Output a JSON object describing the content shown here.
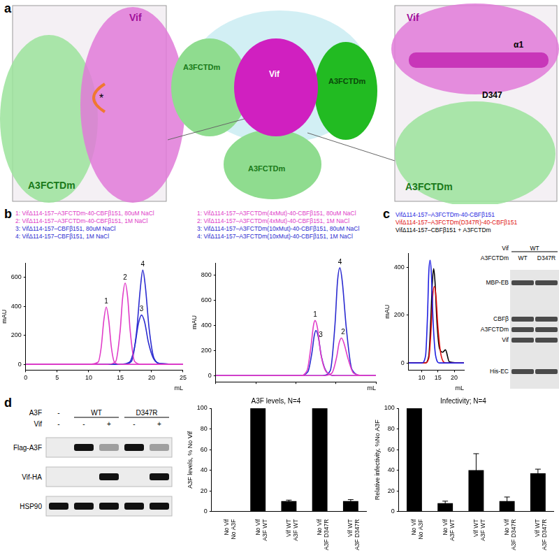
{
  "panel_letters": [
    "a",
    "b",
    "c",
    "d"
  ],
  "panel_a": {
    "left_inset": [
      "A3FCTDm",
      "Vif",
      "*"
    ],
    "center": [
      "A3FCTDm",
      "Vif",
      "A3FCTDm",
      "A3FCTDm"
    ],
    "right_inset": [
      "Vif",
      "α1",
      "D347",
      "A3FCTDm"
    ]
  },
  "chart_data": [
    {
      "type": "line",
      "x_label": "mL",
      "y_label": "mAU",
      "xlim": [
        0,
        25
      ],
      "xticks": [
        0,
        5,
        10,
        15,
        20,
        25
      ],
      "ylim": [
        -40,
        700
      ],
      "yticks": [
        0,
        200,
        400,
        600
      ],
      "grid": false,
      "series": [
        {
          "name": "1: VifΔ114-157–A3FCTDm-40-CBFβ151, 80uM NaCl",
          "color": "#e03cc8",
          "x": [
            0,
            10,
            11.5,
            12,
            12.4,
            12.8,
            13.2,
            13.6,
            14.1,
            15,
            20,
            25
          ],
          "values": [
            0,
            0,
            15,
            120,
            300,
            395,
            300,
            120,
            15,
            0,
            0,
            0
          ]
        },
        {
          "name": "2: VifΔ114-157–A3FCTDm-40-CBFβ151, 1M NaCl",
          "color": "#e03cc8",
          "x": [
            0,
            13,
            14.3,
            15,
            15.4,
            15.8,
            16.2,
            16.6,
            17.3,
            18.5,
            25
          ],
          "values": [
            0,
            0,
            20,
            230,
            460,
            560,
            460,
            230,
            20,
            0,
            0
          ]
        },
        {
          "name": "3: VifΔ114-157–CBFβ151, 80uM NaCl",
          "color": "#2b2bd0",
          "x": [
            0,
            15,
            16.5,
            17.3,
            17.9,
            18.4,
            18.9,
            19.5,
            20.3,
            21.5,
            25
          ],
          "values": [
            0,
            0,
            15,
            120,
            280,
            340,
            290,
            150,
            40,
            5,
            0
          ]
        },
        {
          "name": "4: VifΔ114-157–CBFβ151, 1M NaCl",
          "color": "#2b2bd0",
          "x": [
            0,
            15.5,
            16.8,
            17.6,
            18.2,
            18.6,
            19,
            19.6,
            20.4,
            21.5,
            25
          ],
          "values": [
            0,
            0,
            20,
            220,
            520,
            650,
            540,
            250,
            40,
            5,
            0
          ]
        }
      ],
      "annotations": [
        {
          "text": "1",
          "x": 12.8,
          "y": 395
        },
        {
          "text": "2",
          "x": 15.8,
          "y": 560
        },
        {
          "text": "3",
          "x": 18.4,
          "y": 340
        },
        {
          "text": "4",
          "x": 18.6,
          "y": 650
        }
      ]
    },
    {
      "type": "line",
      "x_label": "mL",
      "y_label": "mAU",
      "xlim": [
        0,
        20
      ],
      "xticks": [
        0,
        5,
        10,
        15,
        20
      ],
      "ylim": [
        -50,
        900
      ],
      "yticks": [
        0,
        200,
        400,
        600,
        800
      ],
      "grid": false,
      "tick_labels": "y",
      "series": [
        {
          "name": "1: VifΔ114-157–A3FCTDm(4xMut)-40-CBFβ151, 80uM NaCl",
          "color": "#e03cc8",
          "x": [
            0,
            10.5,
            11.4,
            11.9,
            12.2,
            12.4,
            12.7,
            13.1,
            13.8,
            15,
            20
          ],
          "values": [
            0,
            0,
            40,
            240,
            400,
            440,
            380,
            180,
            30,
            0,
            0
          ]
        },
        {
          "name": "2: VifΔ114-157–A3FCTDm(4xMut)-40-CBFβ151, 1M NaCl",
          "color": "#e03cc8",
          "x": [
            0,
            13.5,
            14.5,
            15.1,
            15.4,
            15.7,
            16,
            16.5,
            17.2,
            18.5,
            20
          ],
          "values": [
            0,
            0,
            20,
            150,
            260,
            300,
            260,
            140,
            20,
            0,
            0
          ]
        },
        {
          "name": "3: VifΔ114-157–A3FCTDm(10xMut)-40-CBFβ151, 80uM NaCl",
          "color": "#2b2bd0",
          "x": [
            0,
            10.5,
            11.5,
            12,
            12.3,
            12.5,
            12.8,
            13.2,
            13.9,
            15,
            20
          ],
          "values": [
            0,
            0,
            30,
            180,
            320,
            360,
            310,
            150,
            25,
            0,
            0
          ]
        },
        {
          "name": "4: VifΔ114-157–A3FCTDm(10xMut)-40-CBFβ151, 1M NaCl",
          "color": "#2b2bd0",
          "x": [
            0,
            13.3,
            14.3,
            14.9,
            15.2,
            15.5,
            15.8,
            16.3,
            17,
            18.3,
            20
          ],
          "values": [
            0,
            0,
            40,
            420,
            750,
            860,
            750,
            380,
            50,
            0,
            0
          ]
        }
      ],
      "annotations": [
        {
          "text": "1",
          "x": 12.4,
          "y": 440
        },
        {
          "text": "3",
          "x": 13.1,
          "y": 280
        },
        {
          "text": "4",
          "x": 15.5,
          "y": 860
        },
        {
          "text": "2",
          "x": 15.9,
          "y": 300
        }
      ]
    },
    {
      "type": "line",
      "x_label": "mL",
      "y_label": "mAU",
      "xlim": [
        6,
        23
      ],
      "xticks": [
        10,
        15,
        20
      ],
      "ylim": [
        -30,
        460
      ],
      "yticks": [
        0,
        200,
        400
      ],
      "grid": false,
      "series": [
        {
          "name": "VifΔ114-157–A3FCTDm-40-CBFβ151",
          "color": "#1f1fe0",
          "x": [
            6,
            10,
            11.2,
            11.8,
            12.2,
            12.6,
            13,
            13.5,
            14.3,
            15.5,
            23
          ],
          "values": [
            0,
            0,
            30,
            200,
            380,
            430,
            370,
            180,
            30,
            0,
            0
          ]
        },
        {
          "name": "VifΔ114-157–A3FCTDm(D347R)-40-CBFβ151",
          "color": "#e01010",
          "x": [
            6,
            11,
            12.2,
            12.9,
            13.4,
            13.9,
            14.4,
            15,
            16,
            17.5,
            23
          ],
          "values": [
            0,
            0,
            20,
            140,
            280,
            320,
            280,
            150,
            30,
            0,
            0
          ]
        },
        {
          "name": "VifΔ114-157–CBFβ151 + A3FCTDm",
          "color": "#000000",
          "x": [
            6,
            11,
            12.2,
            12.8,
            13.3,
            13.7,
            14.1,
            14.7,
            15.5,
            16.5,
            17.3,
            18.5,
            23
          ],
          "values": [
            0,
            0,
            30,
            180,
            340,
            395,
            340,
            170,
            60,
            45,
            55,
            5,
            0
          ]
        }
      ]
    },
    {
      "type": "bar",
      "title": "A3F levels, N=4",
      "y_label": "A3F levels, % No Vif",
      "categories": [
        [
          "No Vif",
          "No A3F"
        ],
        [
          "No Vif",
          "A3F WT"
        ],
        [
          "Vif WT",
          "A3F WT"
        ],
        [
          "No Vif",
          "A3F D347R"
        ],
        [
          "Vif WT",
          "A3F D347R"
        ]
      ],
      "values": [
        0,
        100,
        10,
        100,
        10
      ],
      "errors": [
        0,
        0,
        1,
        0,
        1.5
      ],
      "color": "#000000",
      "ylim": [
        0,
        100
      ],
      "yticks": [
        0,
        20,
        40,
        60,
        80,
        100
      ],
      "grid": false
    },
    {
      "type": "bar",
      "title": "Infectivity; N=4",
      "y_label": "Relative infectivity, %No A3F",
      "categories": [
        [
          "No Vif",
          "No A3F"
        ],
        [
          "No Vif",
          "A3F WT"
        ],
        [
          "Vif WT",
          "A3F WT"
        ],
        [
          "No Vif",
          "A3F D347R"
        ],
        [
          "Vif WT",
          "A3F D347R"
        ]
      ],
      "values": [
        100,
        8,
        40,
        10,
        37
      ],
      "errors": [
        0,
        2,
        16,
        4,
        4
      ],
      "color": "#000000",
      "ylim": [
        0,
        100
      ],
      "yticks": [
        0,
        20,
        40,
        60,
        80,
        100
      ],
      "grid": false
    }
  ],
  "gel": {
    "rows": [
      {
        "label": "Vif",
        "values": [
          "WT"
        ]
      },
      {
        "label": "A3FCTDm",
        "values": [
          "WT",
          "D347R"
        ]
      }
    ],
    "bands": [
      "MBP-EB",
      "CBFβ",
      "A3FCTDm",
      "Vif",
      "His-EC"
    ]
  },
  "blot": {
    "header": [
      {
        "label": "A3F",
        "groups": [
          "-",
          "WT",
          "D347R"
        ],
        "lanes": [
          1,
          2,
          2
        ]
      },
      {
        "label": "Vif",
        "groups": [
          "-",
          "-",
          "+",
          "-",
          "+"
        ],
        "lanes": [
          1,
          1,
          1,
          1,
          1
        ]
      }
    ],
    "rows": [
      {
        "label": "Flag-A3F",
        "intensity": [
          0,
          1,
          0.35,
          1,
          0.35
        ]
      },
      {
        "label": "Vif-HA",
        "intensity": [
          0,
          0,
          1,
          0,
          1
        ]
      },
      {
        "label": "HSP90",
        "intensity": [
          1,
          1,
          1,
          1,
          1
        ]
      }
    ]
  }
}
